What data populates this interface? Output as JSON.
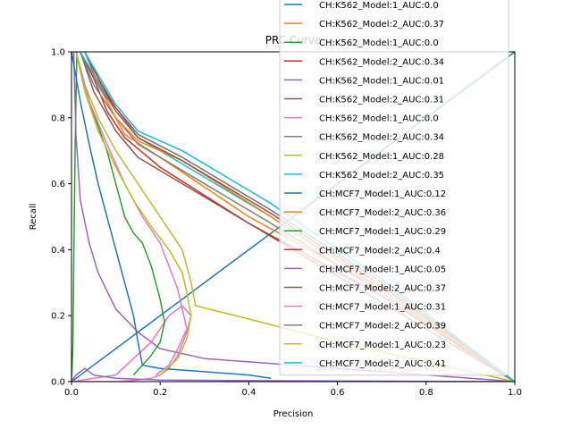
{
  "chart_data": {
    "type": "line",
    "title": "PRC Curve",
    "xlabel": "Precision",
    "ylabel": "Recall",
    "xlim": [
      0,
      1
    ],
    "ylim": [
      0,
      1
    ],
    "xticks": [
      "0.0",
      "0.2",
      "0.4",
      "0.6",
      "0.8",
      "1.0"
    ],
    "yticks": [
      "0.0",
      "0.2",
      "0.4",
      "0.6",
      "0.8",
      "1.0"
    ],
    "grid": false,
    "legend_position": "top-right",
    "series": [
      {
        "name": "CH:K562_Model:1_AUC:0.0",
        "color": "#1f77b4",
        "x": [
          0.0,
          1.0
        ],
        "y": [
          0.0,
          1.0
        ]
      },
      {
        "name": "CH:K562_Model:2_AUC:0.37",
        "color": "#ff7f0e",
        "x": [
          0.03,
          0.05,
          0.08,
          0.12,
          0.2,
          0.4,
          0.7,
          1.0
        ],
        "y": [
          1.0,
          0.95,
          0.85,
          0.75,
          0.68,
          0.5,
          0.28,
          0.0
        ]
      },
      {
        "name": "CH:K562_Model:1_AUC:0.0",
        "color": "#2ca02c",
        "x": [
          0.0,
          0.003,
          0.005,
          0.008,
          0.012
        ],
        "y": [
          0.0,
          0.1,
          0.35,
          0.7,
          1.0
        ]
      },
      {
        "name": "CH:K562_Model:2_AUC:0.34",
        "color": "#d62728",
        "x": [
          0.02,
          0.05,
          0.08,
          0.12,
          0.2,
          0.4,
          0.7,
          1.0
        ],
        "y": [
          1.0,
          0.92,
          0.82,
          0.74,
          0.65,
          0.48,
          0.26,
          0.0
        ]
      },
      {
        "name": "CH:K562_Model:1_AUC:0.01",
        "color": "#9467bd",
        "x": [
          0.005,
          0.01,
          0.02,
          0.04,
          0.06,
          0.1,
          0.15,
          0.2,
          0.3,
          0.4,
          0.5,
          0.6,
          0.7,
          0.8,
          0.9,
          1.0
        ],
        "y": [
          1.0,
          0.75,
          0.55,
          0.42,
          0.33,
          0.22,
          0.15,
          0.1,
          0.07,
          0.06,
          0.05,
          0.04,
          0.03,
          0.02,
          0.01,
          0.0
        ]
      },
      {
        "name": "CH:K562_Model:2_AUC:0.31",
        "color": "#8c564b",
        "x": [
          0.02,
          0.05,
          0.1,
          0.15,
          0.25,
          0.45,
          0.7,
          1.0
        ],
        "y": [
          1.0,
          0.88,
          0.76,
          0.68,
          0.6,
          0.44,
          0.24,
          0.0
        ]
      },
      {
        "name": "CH:K562_Model:1_AUC:0.0",
        "color": "#e377c2",
        "x": [
          0.0,
          0.05,
          0.1,
          0.15,
          0.18,
          0.2,
          0.22,
          0.24,
          0.26,
          0.27,
          0.25,
          0.22,
          0.18,
          0.1,
          0.0
        ],
        "y": [
          0.0,
          0.0,
          0.0,
          0.005,
          0.01,
          0.02,
          0.04,
          0.08,
          0.15,
          0.2,
          0.23,
          0.2,
          0.12,
          0.02,
          0.0
        ]
      },
      {
        "name": "CH:K562_Model:2_AUC:0.34",
        "color": "#7f7f7f",
        "x": [
          0.02,
          0.05,
          0.1,
          0.15,
          0.25,
          0.45,
          0.7,
          1.0
        ],
        "y": [
          1.0,
          0.9,
          0.8,
          0.72,
          0.64,
          0.48,
          0.27,
          0.0
        ]
      },
      {
        "name": "CH:K562_Model:1_AUC:0.28",
        "color": "#bcbd22",
        "x": [
          0.01,
          0.03,
          0.06,
          0.1,
          0.15,
          0.2,
          0.25,
          0.27,
          0.28,
          0.4,
          0.6,
          0.8,
          1.0
        ],
        "y": [
          1.0,
          0.9,
          0.8,
          0.7,
          0.6,
          0.5,
          0.4,
          0.3,
          0.23,
          0.19,
          0.12,
          0.06,
          0.0
        ]
      },
      {
        "name": "CH:K562_Model:2_AUC:0.35",
        "color": "#17becf",
        "x": [
          0.02,
          0.05,
          0.1,
          0.15,
          0.25,
          0.45,
          0.7,
          1.0
        ],
        "y": [
          1.0,
          0.93,
          0.82,
          0.74,
          0.66,
          0.5,
          0.28,
          0.0
        ]
      },
      {
        "name": "CH:MCF7_Model:1_AUC:0.12",
        "color": "#1f77b4",
        "x": [
          0.0,
          0.02,
          0.04,
          0.06,
          0.08,
          0.1,
          0.12,
          0.14,
          0.15,
          0.16,
          0.2,
          0.3,
          0.4,
          0.45
        ],
        "y": [
          1.0,
          0.85,
          0.72,
          0.6,
          0.5,
          0.4,
          0.3,
          0.2,
          0.12,
          0.05,
          0.04,
          0.03,
          0.02,
          0.01
        ]
      },
      {
        "name": "CH:MCF7_Model:2_AUC:0.36",
        "color": "#ff7f0e",
        "x": [
          0.03,
          0.06,
          0.1,
          0.15,
          0.25,
          0.45,
          0.7,
          1.0
        ],
        "y": [
          1.0,
          0.9,
          0.8,
          0.73,
          0.67,
          0.5,
          0.28,
          0.0
        ]
      },
      {
        "name": "CH:MCF7_Model:1_AUC:0.29",
        "color": "#2ca02c",
        "x": [
          0.01,
          0.04,
          0.08,
          0.1,
          0.12,
          0.14,
          0.16,
          0.18,
          0.2,
          0.21,
          0.2,
          0.18,
          0.14
        ],
        "y": [
          1.0,
          0.85,
          0.7,
          0.6,
          0.5,
          0.45,
          0.42,
          0.35,
          0.25,
          0.18,
          0.12,
          0.08,
          0.02
        ]
      },
      {
        "name": "CH:MCF7_Model:2_AUC:0.4",
        "color": "#d62728",
        "x": [
          0.03,
          0.06,
          0.1,
          0.15,
          0.25,
          0.45,
          0.7,
          1.0
        ],
        "y": [
          1.0,
          0.92,
          0.83,
          0.75,
          0.68,
          0.52,
          0.3,
          0.0
        ]
      },
      {
        "name": "CH:MCF7_Model:1_AUC:0.05",
        "color": "#9467bd",
        "x": [
          0.0,
          0.01,
          0.02,
          0.03,
          0.05,
          0.1,
          0.2,
          0.3,
          0.4,
          0.6,
          1.0
        ],
        "y": [
          0.0,
          0.02,
          0.03,
          0.04,
          0.02,
          0.01,
          0.005,
          0.004,
          0.003,
          0.002,
          0.0
        ]
      },
      {
        "name": "CH:MCF7_Model:2_AUC:0.37",
        "color": "#8c564b",
        "x": [
          0.03,
          0.06,
          0.1,
          0.15,
          0.25,
          0.45,
          0.7,
          1.0
        ],
        "y": [
          1.0,
          0.92,
          0.82,
          0.74,
          0.67,
          0.51,
          0.29,
          0.0
        ]
      },
      {
        "name": "CH:MCF7_Model:1_AUC:0.31",
        "color": "#e377c2",
        "x": [
          0.01,
          0.04,
          0.08,
          0.12,
          0.16,
          0.2,
          0.22,
          0.24,
          0.25,
          0.26,
          0.24,
          0.22,
          0.19
        ],
        "y": [
          1.0,
          0.85,
          0.72,
          0.6,
          0.5,
          0.42,
          0.35,
          0.28,
          0.22,
          0.16,
          0.1,
          0.05,
          0.02
        ]
      },
      {
        "name": "CH:MCF7_Model:2_AUC:0.39",
        "color": "#7f7f7f",
        "x": [
          0.03,
          0.06,
          0.1,
          0.15,
          0.25,
          0.45,
          0.7,
          1.0
        ],
        "y": [
          1.0,
          0.9,
          0.82,
          0.75,
          0.68,
          0.52,
          0.3,
          0.0
        ]
      },
      {
        "name": "CH:MCF7_Model:1_AUC:0.23",
        "color": "#bcbd22",
        "x": [
          0.01,
          0.03,
          0.06,
          0.1,
          0.14,
          0.18,
          0.22,
          0.25,
          0.26,
          0.27,
          0.26,
          0.24,
          0.2
        ],
        "y": [
          1.0,
          0.88,
          0.76,
          0.65,
          0.55,
          0.47,
          0.4,
          0.33,
          0.27,
          0.2,
          0.13,
          0.07,
          0.02
        ]
      },
      {
        "name": "CH:MCF7_Model:2_AUC:0.41",
        "color": "#17becf",
        "x": [
          0.03,
          0.06,
          0.1,
          0.15,
          0.25,
          0.45,
          0.7,
          1.0
        ],
        "y": [
          1.0,
          0.93,
          0.84,
          0.76,
          0.7,
          0.54,
          0.31,
          0.0
        ]
      }
    ]
  }
}
